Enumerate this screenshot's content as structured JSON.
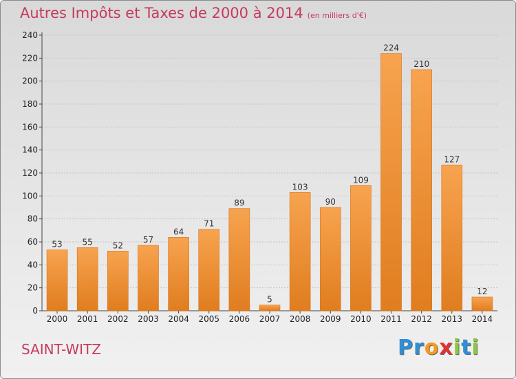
{
  "header": {
    "title": "Autres Impôts et Taxes de 2000 à 2014",
    "unit": "(en milliers d'€)"
  },
  "footer": {
    "commune": "SAINT-WITZ",
    "logo_letters": [
      {
        "char": "P",
        "color": "#2e8fd8"
      },
      {
        "char": "r",
        "color": "#2e8fd8"
      },
      {
        "char": "o",
        "color": "#f39a1f"
      },
      {
        "char": "x",
        "color": "#e0322e"
      },
      {
        "char": "i",
        "color": "#8dc63f"
      },
      {
        "char": "t",
        "color": "#2e8fd8"
      },
      {
        "char": "i",
        "color": "#8dc63f"
      }
    ]
  },
  "colors": {
    "bar_light": "#f7a34f",
    "bar_dark": "#e07d1f",
    "title": "#c63a5e"
  },
  "chart_data": {
    "type": "bar",
    "title": "Autres Impôts et Taxes de 2000 à 2014",
    "subtitle": "(en milliers d'€)",
    "xlabel": "",
    "ylabel": "",
    "categories": [
      "2000",
      "2001",
      "2002",
      "2003",
      "2004",
      "2005",
      "2006",
      "2007",
      "2008",
      "2009",
      "2010",
      "2011",
      "2012",
      "2013",
      "2014"
    ],
    "values": [
      53,
      55,
      52,
      57,
      64,
      71,
      89,
      5,
      103,
      90,
      109,
      224,
      210,
      127,
      12
    ],
    "ylim": [
      0,
      240
    ],
    "yticks": [
      0,
      20,
      40,
      60,
      80,
      100,
      120,
      140,
      160,
      180,
      200,
      220,
      240
    ],
    "grid": true,
    "legend": "none"
  }
}
